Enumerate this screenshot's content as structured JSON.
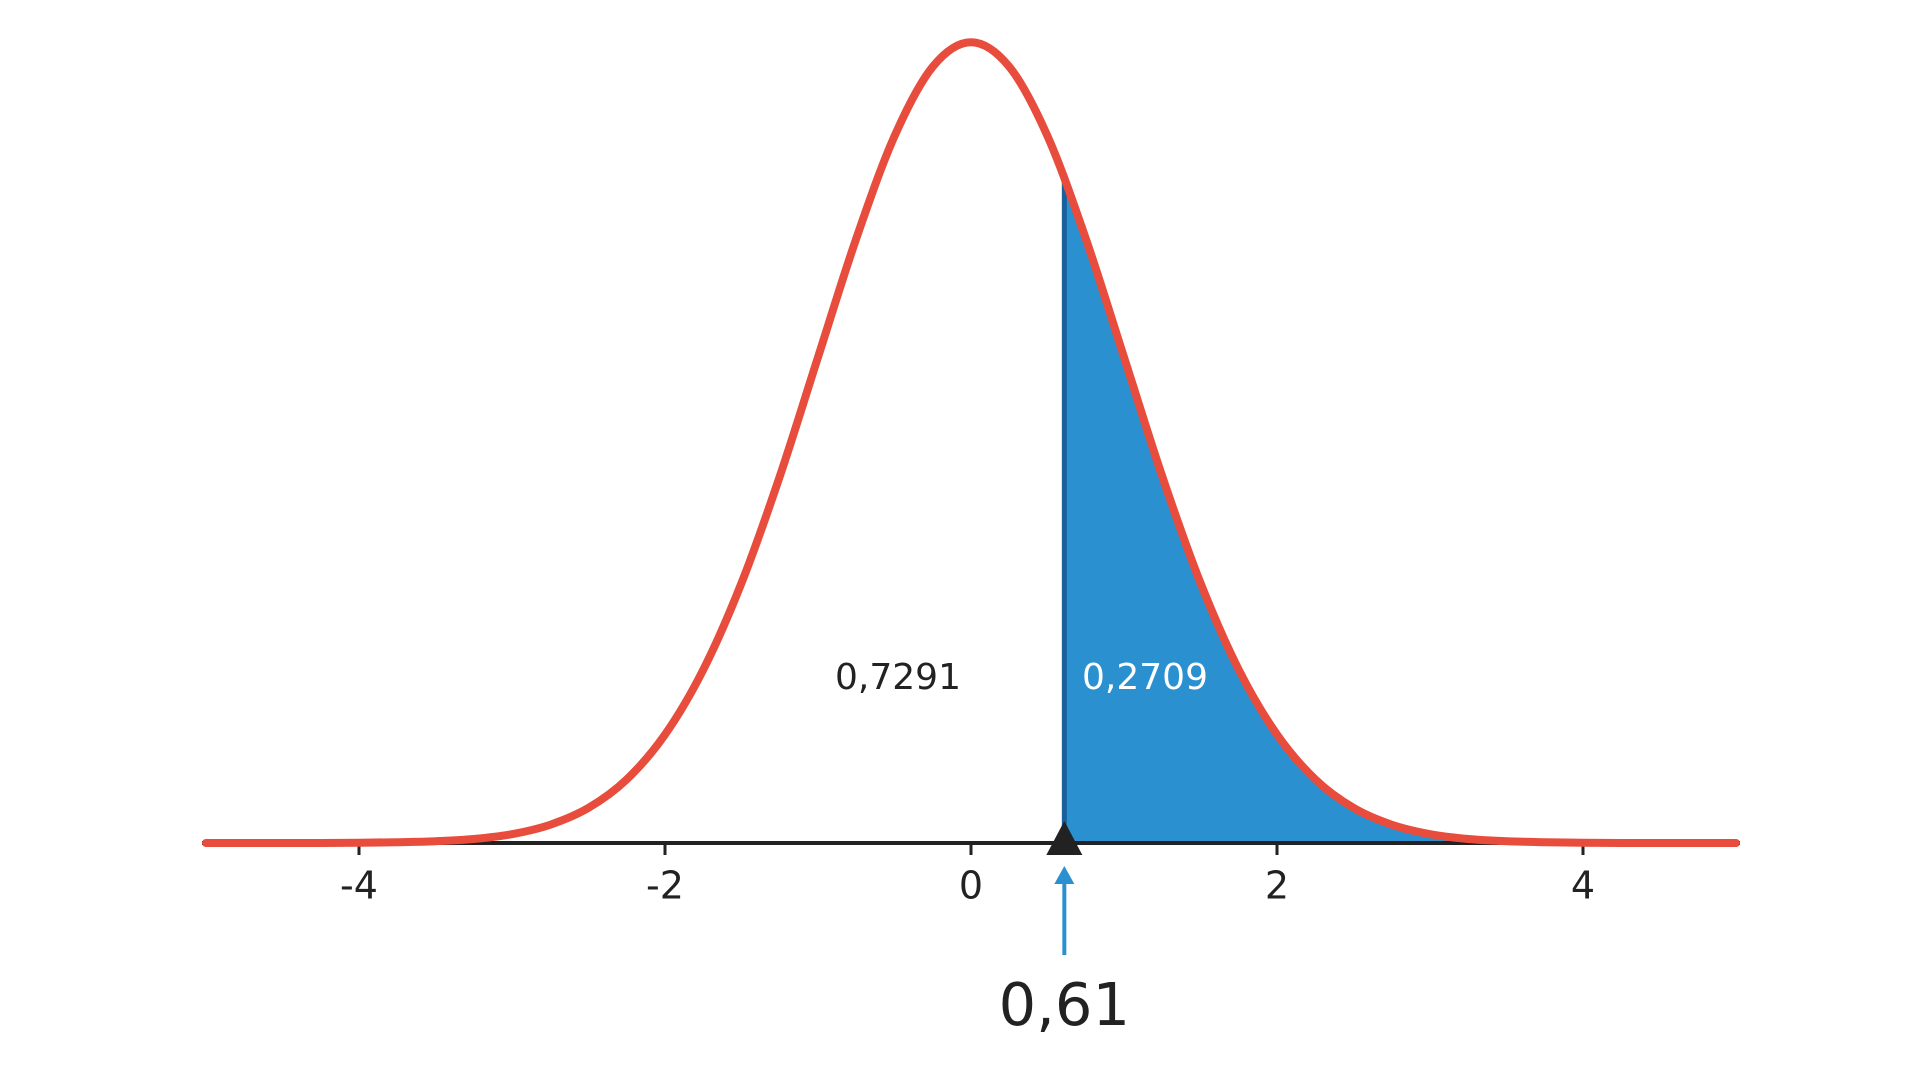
{
  "chart_data": {
    "type": "density",
    "x": [
      -5,
      -4.75,
      -4.5,
      -4.25,
      -4,
      -3.75,
      -3.5,
      -3.25,
      -3,
      -2.75,
      -2.5,
      -2.25,
      -2,
      -1.75,
      -1.5,
      -1.25,
      -1,
      -0.75,
      -0.5,
      -0.25,
      0,
      0.25,
      0.5,
      0.75,
      1,
      1.25,
      1.5,
      1.75,
      2,
      2.25,
      2.5,
      2.75,
      3,
      3.25,
      3.5,
      3.75,
      4,
      4.25,
      4.5,
      4.75,
      5
    ],
    "values": [
      0,
      0,
      0,
      0,
      0.0001,
      0.0004,
      0.0009,
      0.002,
      0.0044,
      0.0091,
      0.0175,
      0.0317,
      0.054,
      0.0863,
      0.1295,
      0.1826,
      0.242,
      0.3011,
      0.3521,
      0.3867,
      0.3989,
      0.3867,
      0.3521,
      0.3011,
      0.242,
      0.1826,
      0.1295,
      0.0863,
      0.054,
      0.0317,
      0.0175,
      0.0091,
      0.0044,
      0.002,
      0.0009,
      0.0004,
      0.0001,
      0,
      0,
      0,
      0
    ],
    "color": "#e74c3c",
    "fill_color": "#2b90d0",
    "xlim": [
      -5,
      5
    ],
    "ylim": [
      0,
      0.4
    ],
    "xticks": [
      -4,
      -2,
      0,
      2,
      4
    ],
    "cutoff": 0.61,
    "cutoff_label": "0,61",
    "areas": {
      "values": [
        0.7291,
        0.2709
      ],
      "value_labels": [
        "0,7291",
        "0,2709"
      ]
    }
  }
}
